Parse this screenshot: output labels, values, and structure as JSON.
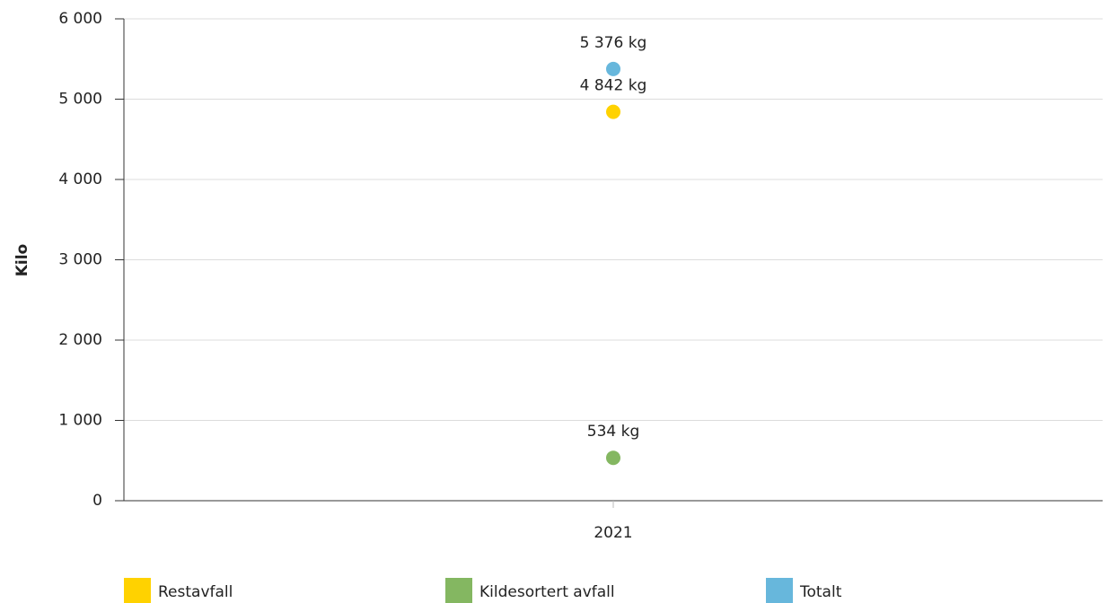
{
  "chart_data": {
    "type": "line",
    "ylabel": "Kilo",
    "categories": [
      "2021"
    ],
    "series": [
      {
        "name": "Restavfall",
        "color": "#ffd200",
        "values": [
          4842
        ],
        "value_labels": [
          "4 842 kg"
        ]
      },
      {
        "name": "Kildesortert avfall",
        "color": "#84b761",
        "values": [
          534
        ],
        "value_labels": [
          "534 kg"
        ]
      },
      {
        "name": "Totalt",
        "color": "#67b7dc",
        "values": [
          5376
        ],
        "value_labels": [
          "5 376 kg"
        ]
      }
    ],
    "ylim": [
      0,
      6000
    ],
    "yticks": [
      0,
      {
        "value": 1000,
        "label": "1 000"
      },
      {
        "value": 2000,
        "label": "2 000"
      },
      {
        "value": 3000,
        "label": "3 000"
      },
      {
        "value": 4000,
        "label": "4 000"
      },
      {
        "value": 5000,
        "label": "5 000"
      },
      {
        "value": 6000,
        "label": "6 000"
      }
    ],
    "grid": true,
    "legend": "bottom"
  }
}
